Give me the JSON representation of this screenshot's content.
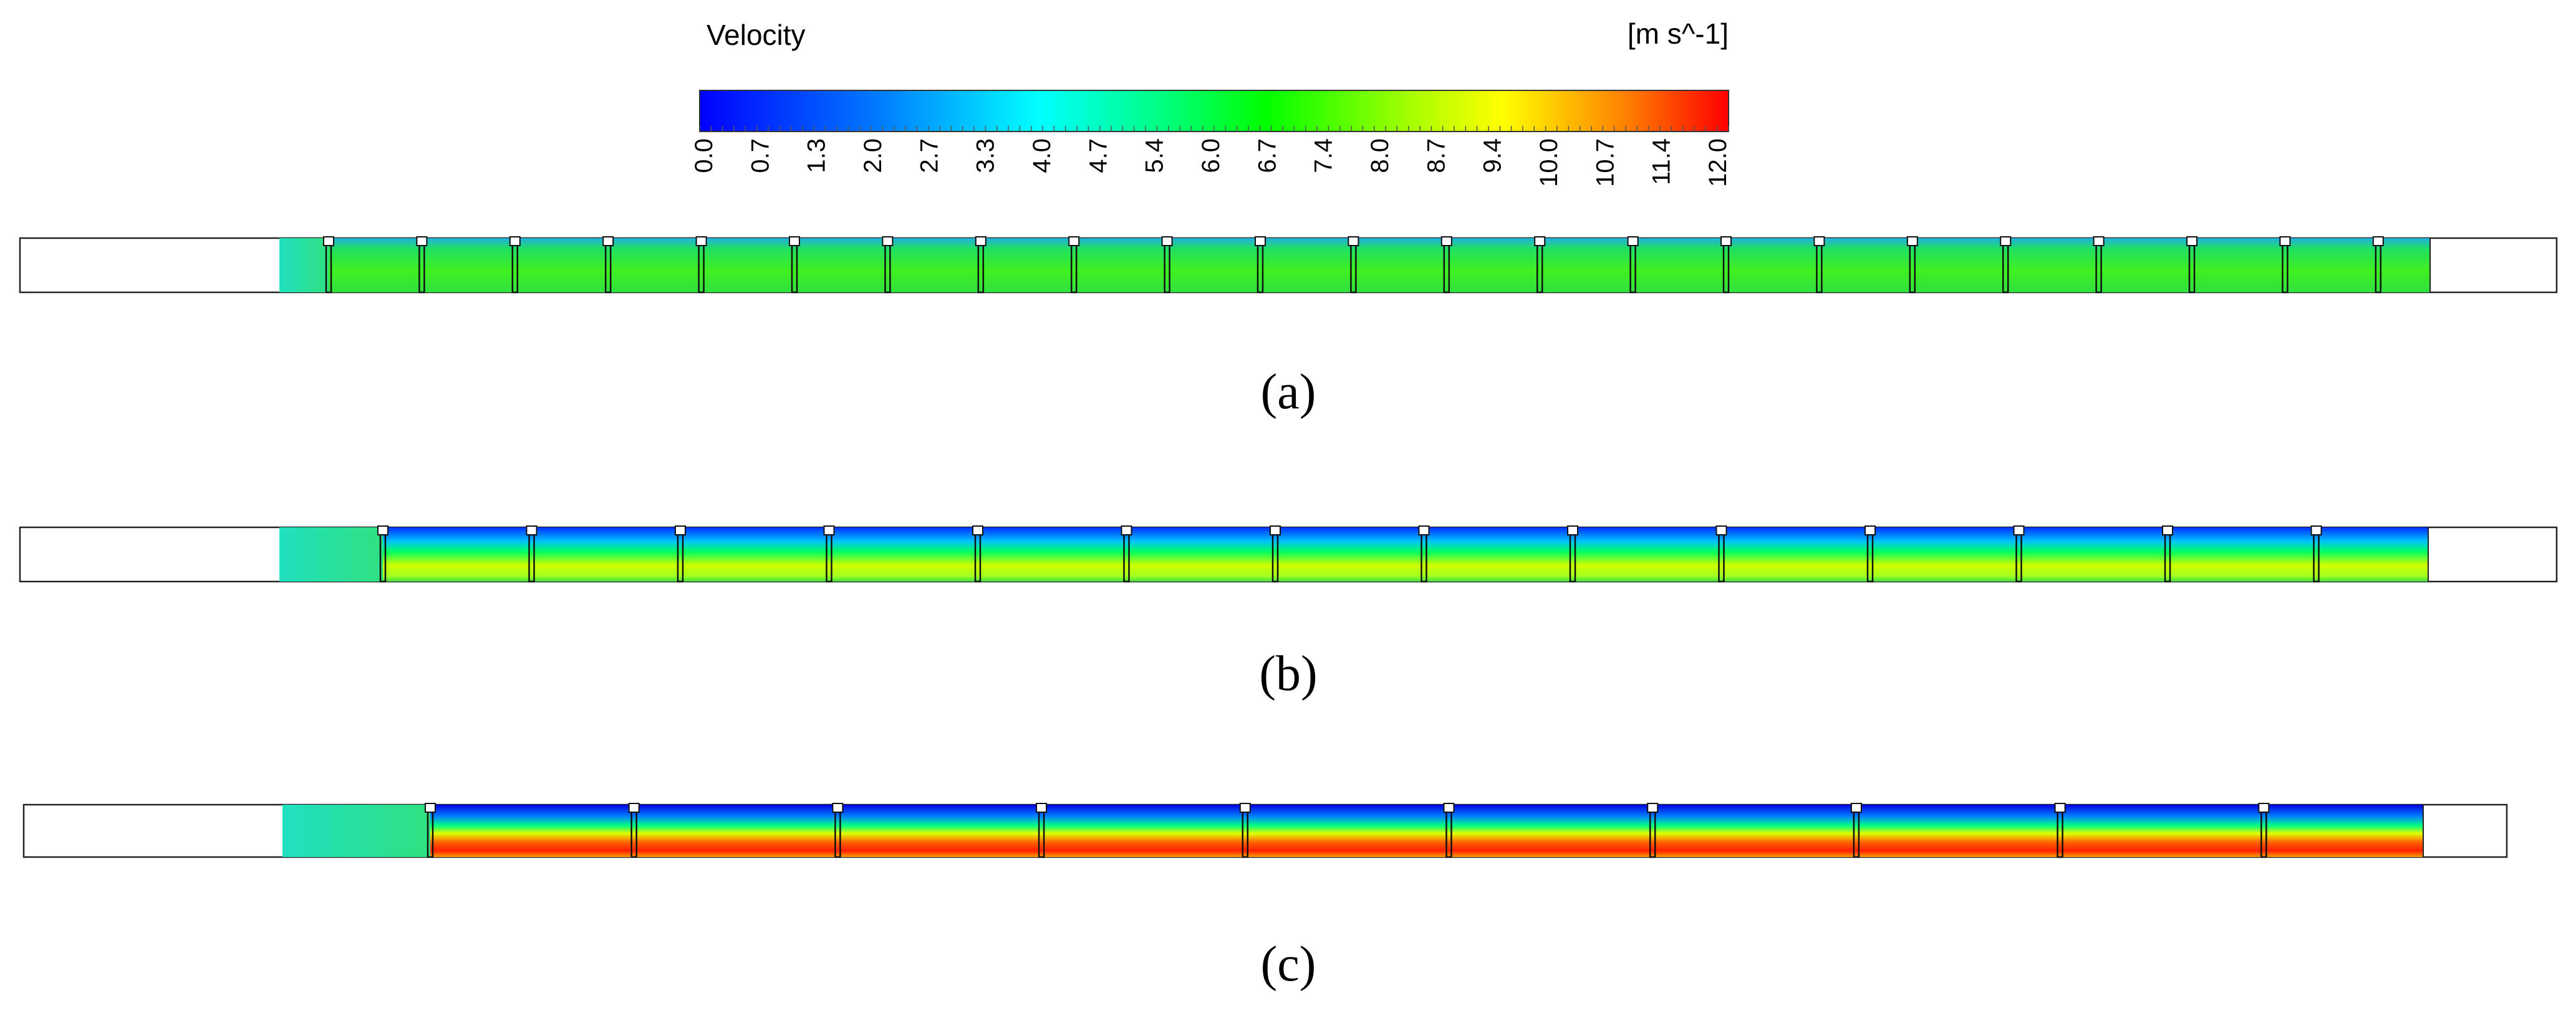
{
  "colorbar": {
    "title": "Velocity",
    "unit": "[m s^-1]",
    "ticks": [
      "0.0",
      "0.7",
      "1.3",
      "2.0",
      "2.7",
      "3.3",
      "4.0",
      "4.7",
      "5.4",
      "6.0",
      "6.7",
      "7.4",
      "8.0",
      "8.7",
      "9.4",
      "10.0",
      "10.7",
      "11.4",
      "12.0"
    ]
  },
  "panels": [
    {
      "label": "(a)"
    },
    {
      "label": "(b)"
    },
    {
      "label": "(c)"
    }
  ]
}
